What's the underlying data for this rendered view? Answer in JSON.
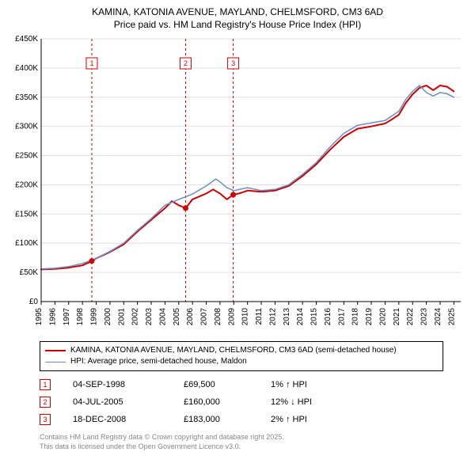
{
  "title": {
    "line1": "KAMINA, KATONIA AVENUE, MAYLAND, CHELMSFORD, CM3 6AD",
    "line2": "Price paid vs. HM Land Registry's House Price Index (HPI)"
  },
  "chart": {
    "type": "line",
    "background_color": "#ffffff",
    "grid_color": "#e0e0e0",
    "xlim": [
      1995,
      2025.5
    ],
    "ylim": [
      0,
      450000
    ],
    "ytick_step": 50000,
    "ytick_labels": [
      "£0",
      "£50K",
      "£100K",
      "£150K",
      "£200K",
      "£250K",
      "£300K",
      "£350K",
      "£400K",
      "£450K"
    ],
    "xticks": [
      1995,
      1996,
      1997,
      1998,
      1999,
      2000,
      2001,
      2002,
      2003,
      2004,
      2005,
      2006,
      2007,
      2008,
      2009,
      2010,
      2011,
      2012,
      2013,
      2014,
      2015,
      2016,
      2017,
      2018,
      2019,
      2020,
      2021,
      2022,
      2023,
      2024,
      2025
    ],
    "series": [
      {
        "name": "KAMINA, KATONIA AVENUE, MAYLAND, CHELMSFORD, CM3 6AD (semi-detached house)",
        "color": "#cc0000",
        "line_width": 2,
        "data": [
          [
            1995,
            55000
          ],
          [
            1996,
            56000
          ],
          [
            1997,
            58000
          ],
          [
            1998,
            62000
          ],
          [
            1998.7,
            69500
          ],
          [
            1999,
            74000
          ],
          [
            2000,
            85000
          ],
          [
            2001,
            98000
          ],
          [
            2002,
            120000
          ],
          [
            2003,
            140000
          ],
          [
            2004,
            160000
          ],
          [
            2004.5,
            172000
          ],
          [
            2005,
            165000
          ],
          [
            2005.5,
            160000
          ],
          [
            2006,
            175000
          ],
          [
            2007,
            185000
          ],
          [
            2007.5,
            192000
          ],
          [
            2008,
            185000
          ],
          [
            2008.5,
            175000
          ],
          [
            2008.95,
            183000
          ],
          [
            2009,
            183000
          ],
          [
            2009.5,
            186000
          ],
          [
            2010,
            190000
          ],
          [
            2011,
            188000
          ],
          [
            2012,
            190000
          ],
          [
            2013,
            198000
          ],
          [
            2014,
            215000
          ],
          [
            2015,
            235000
          ],
          [
            2016,
            260000
          ],
          [
            2017,
            282000
          ],
          [
            2018,
            296000
          ],
          [
            2019,
            300000
          ],
          [
            2020,
            305000
          ],
          [
            2020.5,
            312000
          ],
          [
            2021,
            320000
          ],
          [
            2021.5,
            340000
          ],
          [
            2022,
            355000
          ],
          [
            2022.5,
            366000
          ],
          [
            2023,
            370000
          ],
          [
            2023.5,
            362000
          ],
          [
            2024,
            370000
          ],
          [
            2024.5,
            368000
          ],
          [
            2025,
            360000
          ]
        ]
      },
      {
        "name": "HPI: Average price, semi-detached house, Maldon",
        "color": "#6a8fc7",
        "line_width": 1.5,
        "data": [
          [
            1995,
            56000
          ],
          [
            1996,
            57000
          ],
          [
            1997,
            60000
          ],
          [
            1998,
            65000
          ],
          [
            1999,
            74000
          ],
          [
            2000,
            86000
          ],
          [
            2001,
            100000
          ],
          [
            2002,
            122000
          ],
          [
            2003,
            142000
          ],
          [
            2004,
            165000
          ],
          [
            2005,
            175000
          ],
          [
            2006,
            184000
          ],
          [
            2007,
            198000
          ],
          [
            2007.7,
            210000
          ],
          [
            2008,
            205000
          ],
          [
            2008.5,
            195000
          ],
          [
            2009,
            190000
          ],
          [
            2010,
            195000
          ],
          [
            2011,
            190000
          ],
          [
            2012,
            192000
          ],
          [
            2013,
            200000
          ],
          [
            2014,
            218000
          ],
          [
            2015,
            238000
          ],
          [
            2016,
            265000
          ],
          [
            2017,
            288000
          ],
          [
            2018,
            302000
          ],
          [
            2019,
            306000
          ],
          [
            2020,
            310000
          ],
          [
            2020.5,
            318000
          ],
          [
            2021,
            326000
          ],
          [
            2021.5,
            346000
          ],
          [
            2022,
            360000
          ],
          [
            2022.5,
            370000
          ],
          [
            2023,
            358000
          ],
          [
            2023.5,
            352000
          ],
          [
            2024,
            358000
          ],
          [
            2024.5,
            356000
          ],
          [
            2025,
            350000
          ]
        ]
      }
    ],
    "sale_markers": [
      {
        "n": "1",
        "x": 1998.68,
        "y": 69500
      },
      {
        "n": "2",
        "x": 2005.5,
        "y": 160000
      },
      {
        "n": "3",
        "x": 2008.96,
        "y": 183000
      }
    ],
    "marker_color": "#cc0000",
    "marker_line_dash": "3,3"
  },
  "legend": {
    "items": [
      {
        "label": "KAMINA, KATONIA AVENUE, MAYLAND, CHELMSFORD, CM3 6AD (semi-detached house)",
        "color": "#cc0000",
        "width": 2
      },
      {
        "label": "HPI: Average price, semi-detached house, Maldon",
        "color": "#6a8fc7",
        "width": 1.5
      }
    ]
  },
  "sales": [
    {
      "n": "1",
      "date": "04-SEP-1998",
      "price": "£69,500",
      "change": "1% ↑ HPI"
    },
    {
      "n": "2",
      "date": "04-JUL-2005",
      "price": "£160,000",
      "change": "12% ↓ HPI"
    },
    {
      "n": "3",
      "date": "18-DEC-2008",
      "price": "£183,000",
      "change": "2% ↑ HPI"
    }
  ],
  "footer": {
    "line1": "Contains HM Land Registry data © Crown copyright and database right 2025.",
    "line2": "This data is licensed under the Open Government Licence v3.0."
  }
}
